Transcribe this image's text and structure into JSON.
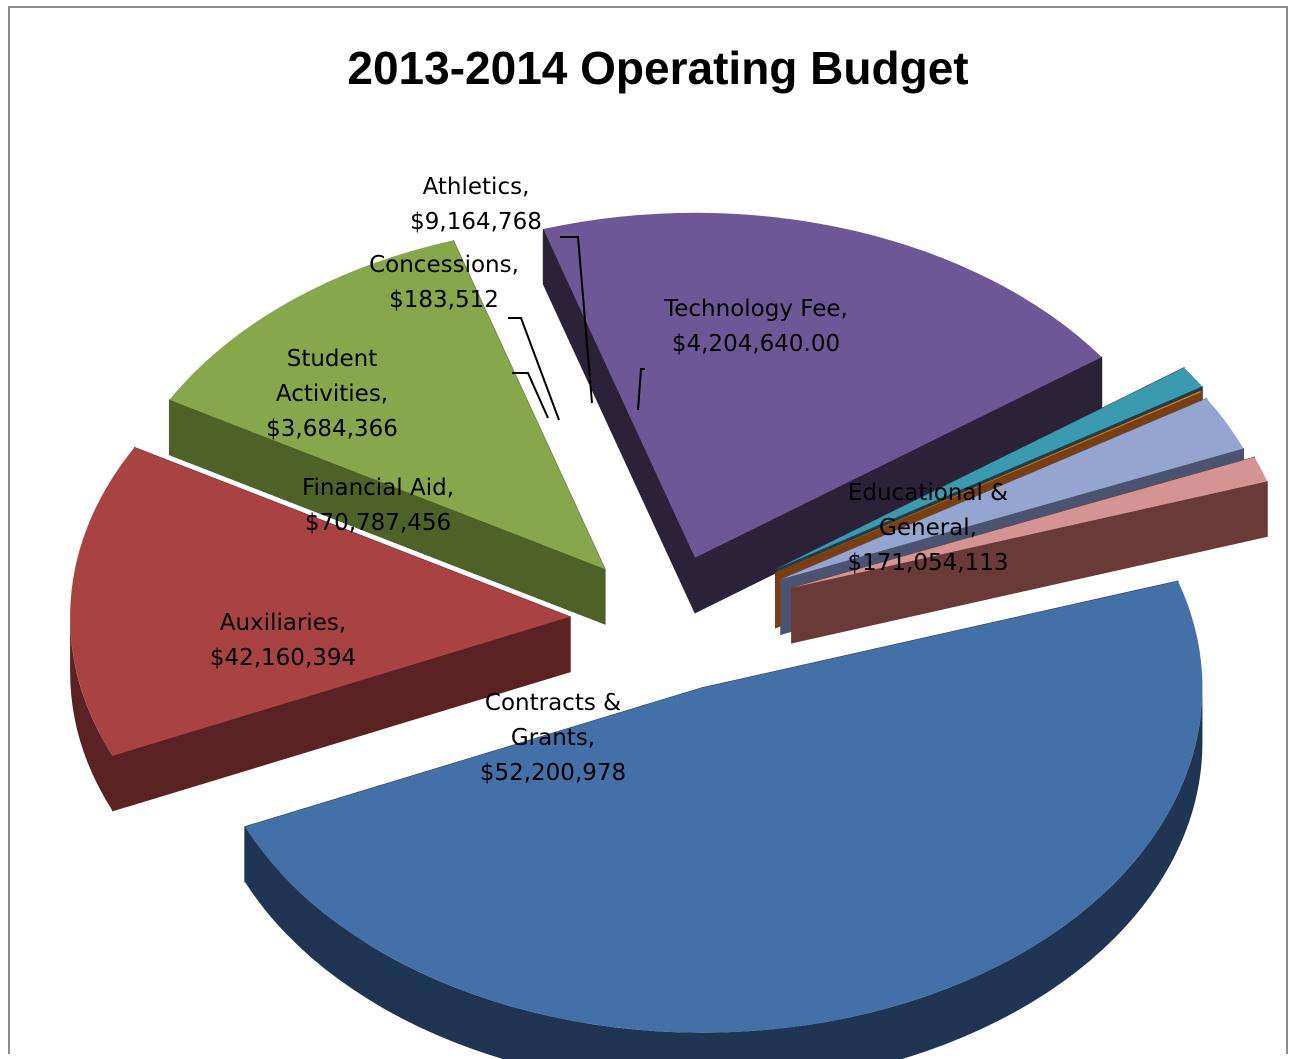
{
  "chart_data": {
    "type": "pie",
    "title": "2013-2014 Operating Budget",
    "slices": [
      {
        "name": "Educational & General",
        "label_lines": [
          "Educational &",
          "General,",
          "$171,054,113"
        ],
        "value": 171054113,
        "color": "#4470a8",
        "side": "#1f3554"
      },
      {
        "name": "Contracts & Grants",
        "label_lines": [
          "Contracts &",
          "Grants,",
          "$52,200,978"
        ],
        "value": 52200978,
        "color": "#a84341",
        "side": "#5a2222"
      },
      {
        "name": "Auxiliaries",
        "label_lines": [
          "Auxiliaries,",
          "$42,160,394"
        ],
        "value": 42160394,
        "color": "#88a64a",
        "side": "#4e6228"
      },
      {
        "name": "Financial Aid",
        "label_lines": [
          "Financial Aid,",
          "$70,787,456"
        ],
        "value": 70787456,
        "color": "#6e5796",
        "side": "#2c2238"
      },
      {
        "name": "Student Activities",
        "label_lines": [
          "Student",
          "Activities,",
          "$3,684,366"
        ],
        "value": 3684366,
        "color": "#3a9ab0",
        "side": "#1b3f4a"
      },
      {
        "name": "Concessions",
        "label_lines": [
          "Concessions,",
          "$183,512"
        ],
        "value": 183512,
        "color": "#e07b25",
        "side": "#7a3e10"
      },
      {
        "name": "Athletics",
        "label_lines": [
          "Athletics,",
          "$9,164,768"
        ],
        "value": 9164768,
        "color": "#94a6cf",
        "side": "#4a5370"
      },
      {
        "name": "Technology Fee",
        "label_lines": [
          "Technology Fee,",
          "$4,204,640.00"
        ],
        "value": 4204640,
        "color": "#d49493",
        "side": "#6a3a39"
      }
    ]
  }
}
